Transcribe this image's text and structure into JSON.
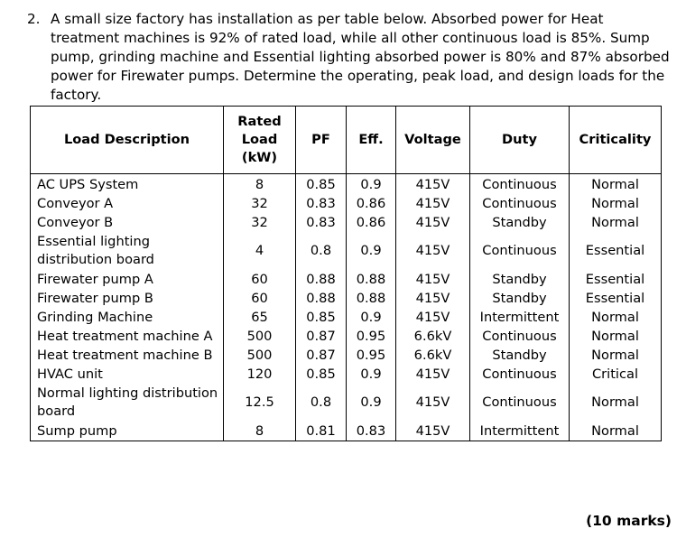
{
  "question": {
    "number": "2.",
    "text": "A small size factory has installation as per table below. Absorbed power for Heat treatment machines is 92% of rated load, while all other continuous load is 85%. Sump pump, grinding machine and Essential lighting absorbed power is 80% and 87% absorbed power for Firewater pumps. Determine the operating, peak load, and design loads for the factory."
  },
  "table": {
    "headers": {
      "description": "Load Description",
      "rated_load": "Rated Load (kW)",
      "pf": "PF",
      "eff": "Eff.",
      "voltage": "Voltage",
      "duty": "Duty",
      "criticality": "Criticality"
    },
    "rows": [
      {
        "description": "AC UPS System",
        "rated_load": "8",
        "pf": "0.85",
        "eff": "0.9",
        "voltage": "415V",
        "duty": "Continuous",
        "criticality": "Normal"
      },
      {
        "description": "Conveyor A",
        "rated_load": "32",
        "pf": "0.83",
        "eff": "0.86",
        "voltage": "415V",
        "duty": "Continuous",
        "criticality": "Normal"
      },
      {
        "description": "Conveyor B",
        "rated_load": "32",
        "pf": "0.83",
        "eff": "0.86",
        "voltage": "415V",
        "duty": "Standby",
        "criticality": "Normal"
      },
      {
        "description": "Essential lighting distribution board",
        "rated_load": "4",
        "pf": "0.8",
        "eff": "0.9",
        "voltage": "415V",
        "duty": "Continuous",
        "criticality": "Essential"
      },
      {
        "description": "Firewater pump A",
        "rated_load": "60",
        "pf": "0.88",
        "eff": "0.88",
        "voltage": "415V",
        "duty": "Standby",
        "criticality": "Essential"
      },
      {
        "description": "Firewater pump B",
        "rated_load": "60",
        "pf": "0.88",
        "eff": "0.88",
        "voltage": "415V",
        "duty": "Standby",
        "criticality": "Essential"
      },
      {
        "description": "Grinding Machine",
        "rated_load": "65",
        "pf": "0.85",
        "eff": "0.9",
        "voltage": "415V",
        "duty": "Intermittent",
        "criticality": "Normal"
      },
      {
        "description": "Heat treatment machine A",
        "rated_load": "500",
        "pf": "0.87",
        "eff": "0.95",
        "voltage": "6.6kV",
        "duty": "Continuous",
        "criticality": "Normal"
      },
      {
        "description": "Heat treatment machine B",
        "rated_load": "500",
        "pf": "0.87",
        "eff": "0.95",
        "voltage": "6.6kV",
        "duty": "Standby",
        "criticality": "Normal"
      },
      {
        "description": "HVAC unit",
        "rated_load": "120",
        "pf": "0.85",
        "eff": "0.9",
        "voltage": "415V",
        "duty": "Continuous",
        "criticality": "Critical"
      },
      {
        "description": "Normal lighting distribution board",
        "rated_load": "12.5",
        "pf": "0.8",
        "eff": "0.9",
        "voltage": "415V",
        "duty": "Continuous",
        "criticality": "Normal"
      },
      {
        "description": "Sump pump",
        "rated_load": "8",
        "pf": "0.81",
        "eff": "0.83",
        "voltage": "415V",
        "duty": "Intermittent",
        "criticality": "Normal"
      }
    ]
  },
  "marks": "(10 marks)"
}
